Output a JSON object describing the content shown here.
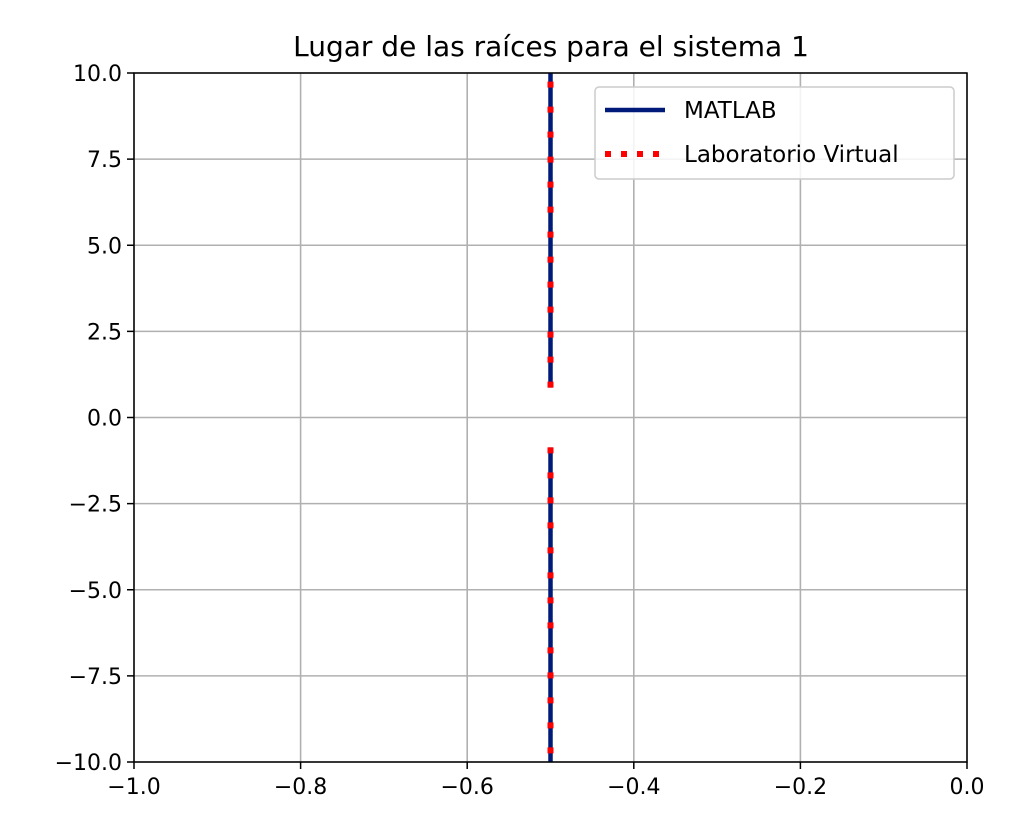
{
  "chart_data": {
    "type": "line",
    "title": "Lugar de las raíces para el sistema 1",
    "xlabel": "",
    "ylabel": "",
    "xlim": [
      -1.0,
      0.0
    ],
    "ylim": [
      -10.0,
      10.0
    ],
    "grid": true,
    "legend_position": "top-right",
    "x_ticks": [
      -1.0,
      -0.8,
      -0.6,
      -0.4,
      -0.2,
      0.0
    ],
    "x_tick_labels": [
      "−1.0",
      "−0.8",
      "−0.6",
      "−0.4",
      "−0.2",
      "0.0"
    ],
    "y_ticks": [
      10.0,
      7.5,
      5.0,
      2.5,
      0.0,
      -2.5,
      -5.0,
      -7.5,
      -10.0
    ],
    "y_tick_labels": [
      "10.0",
      "7.5",
      "5.0",
      "2.5",
      "0.0",
      "−2.5",
      "−5.0",
      "−7.5",
      "−10.0"
    ],
    "series": [
      {
        "name": "MATLAB",
        "color": "#001a7a",
        "style": "solid",
        "segments": [
          {
            "x": [
              -0.5,
              -0.5
            ],
            "y": [
              0.866,
              10.0
            ]
          },
          {
            "x": [
              -0.5,
              -0.5
            ],
            "y": [
              -0.866,
              -10.0
            ]
          }
        ]
      },
      {
        "name": "Laboratorio Virtual",
        "color": "#ff0000",
        "style": "dotted",
        "segments": [
          {
            "x": [
              -0.5,
              -0.5
            ],
            "y": [
              0.866,
              10.0
            ]
          },
          {
            "x": [
              -0.5,
              -0.5
            ],
            "y": [
              -0.866,
              -10.0
            ]
          }
        ]
      }
    ]
  }
}
